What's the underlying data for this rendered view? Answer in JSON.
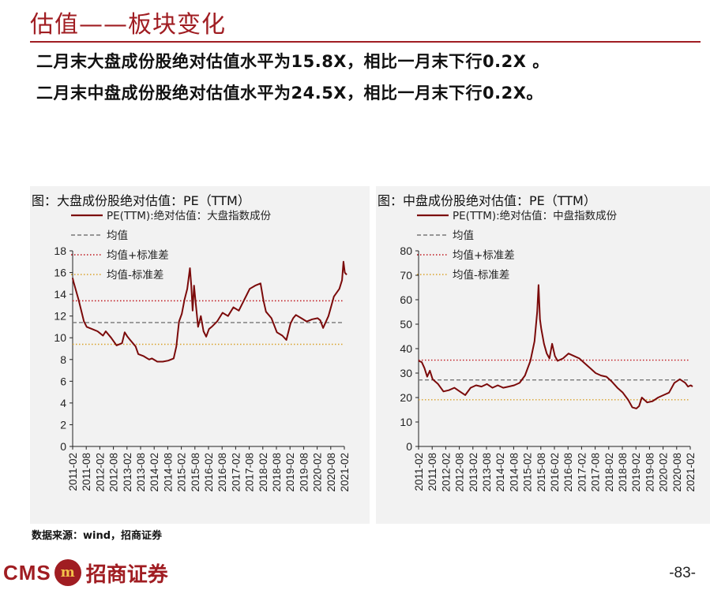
{
  "page": {
    "title": "估值——板块变化",
    "bullets": [
      "二月末大盘成份股绝对估值水平为15.8X，相比一月末下行0.2X 。",
      "二月末中盘成份股绝对估值水平为24.5X，相比一月末下行0.2X。"
    ],
    "source": "数据来源：wind，招商证券",
    "logo": {
      "cms": "CMS",
      "badge": "m",
      "cn": "招商证券"
    },
    "page_number": "-83-"
  },
  "chart_data": [
    {
      "type": "line",
      "title": "图：大盘成份股绝对估值：PE（TTM）",
      "x_ticks": [
        "2011-02",
        "2011-08",
        "2012-02",
        "2012-08",
        "2013-02",
        "2013-08",
        "2014-02",
        "2014-08",
        "2015-02",
        "2015-08",
        "2016-02",
        "2016-08",
        "2017-02",
        "2017-08",
        "2018-02",
        "2018-08",
        "2019-02",
        "2019-08",
        "2020-02",
        "2020-08",
        "2021-02"
      ],
      "ylim": [
        0,
        18
      ],
      "yticks": [
        0,
        2,
        4,
        6,
        8,
        10,
        12,
        14,
        16,
        18
      ],
      "series": [
        {
          "name": "PE(TTM):绝对估值：大盘指数成份",
          "color": "#7b0a0a",
          "x": [
            2011.08,
            2011.12,
            2011.3,
            2011.5,
            2011.6,
            2011.8,
            2012.0,
            2012.2,
            2012.3,
            2012.5,
            2012.7,
            2012.9,
            2013.0,
            2013.1,
            2013.2,
            2013.4,
            2013.5,
            2013.7,
            2013.9,
            2014.0,
            2014.2,
            2014.4,
            2014.6,
            2014.8,
            2014.9,
            2015.0,
            2015.1,
            2015.2,
            2015.3,
            2015.4,
            2015.45,
            2015.5,
            2015.55,
            2015.6,
            2015.7,
            2015.8,
            2015.9,
            2016.0,
            2016.1,
            2016.2,
            2016.4,
            2016.6,
            2016.8,
            2017.0,
            2017.2,
            2017.4,
            2017.6,
            2017.8,
            2018.0,
            2018.1,
            2018.2,
            2018.4,
            2018.6,
            2018.8,
            2018.95,
            2019.1,
            2019.2,
            2019.3,
            2019.5,
            2019.7,
            2019.9,
            2020.1,
            2020.2,
            2020.3,
            2020.5,
            2020.7,
            2020.9,
            2021.0,
            2021.05,
            2021.1,
            2021.17
          ],
          "values": [
            15.5,
            15.1,
            13.5,
            11.5,
            11.0,
            10.8,
            10.6,
            10.2,
            10.6,
            10.0,
            9.3,
            9.5,
            10.5,
            10.1,
            9.8,
            9.2,
            8.5,
            8.3,
            8.0,
            8.1,
            7.8,
            7.8,
            7.9,
            8.1,
            9.2,
            11.5,
            12.2,
            13.5,
            14.5,
            16.4,
            14.8,
            12.5,
            14.8,
            13.5,
            11.0,
            12.0,
            10.6,
            10.1,
            10.8,
            11.0,
            11.5,
            12.3,
            12.0,
            12.8,
            12.5,
            13.5,
            14.5,
            14.8,
            15.0,
            13.5,
            12.4,
            11.8,
            10.5,
            10.2,
            9.8,
            11.3,
            11.8,
            12.1,
            11.8,
            11.5,
            11.7,
            11.8,
            11.6,
            10.9,
            12.0,
            13.8,
            14.5,
            15.3,
            17.0,
            16.0,
            15.8
          ]
        }
      ],
      "reference_lines": [
        {
          "name": "均值",
          "value": 11.4,
          "color": "#777777",
          "style": "dashed"
        },
        {
          "name": "均值+标准差",
          "value": 13.4,
          "color": "#c0161c",
          "style": "dotted"
        },
        {
          "name": "均值-标准差",
          "value": 9.4,
          "color": "#d9a12a",
          "style": "dotted"
        }
      ],
      "legend_position": "top-left"
    },
    {
      "type": "line",
      "title": "图：中盘成份股绝对估值：PE（TTM）",
      "x_ticks": [
        "2011-02",
        "2011-08",
        "2012-02",
        "2012-08",
        "2013-02",
        "2013-08",
        "2014-02",
        "2014-08",
        "2015-02",
        "2015-08",
        "2016-02",
        "2016-08",
        "2017-02",
        "2017-08",
        "2018-02",
        "2018-08",
        "2019-02",
        "2019-08",
        "2020-02",
        "2020-08",
        "2021-02"
      ],
      "ylim": [
        0,
        80
      ],
      "yticks": [
        0,
        10,
        20,
        30,
        40,
        50,
        60,
        70,
        80
      ],
      "series": [
        {
          "name": "PE(TTM):绝对估值：中盘指数成份",
          "color": "#7b0a0a",
          "x": [
            2011.08,
            2011.2,
            2011.3,
            2011.4,
            2011.5,
            2011.6,
            2011.8,
            2012.0,
            2012.2,
            2012.4,
            2012.6,
            2012.8,
            2013.0,
            2013.2,
            2013.4,
            2013.6,
            2013.8,
            2014.0,
            2014.2,
            2014.4,
            2014.6,
            2014.8,
            2015.0,
            2015.2,
            2015.35,
            2015.45,
            2015.5,
            2015.55,
            2015.6,
            2015.7,
            2015.8,
            2015.9,
            2016.0,
            2016.1,
            2016.2,
            2016.4,
            2016.6,
            2016.8,
            2017.0,
            2017.2,
            2017.4,
            2017.6,
            2017.8,
            2018.0,
            2018.2,
            2018.4,
            2018.6,
            2018.8,
            2018.95,
            2019.1,
            2019.2,
            2019.3,
            2019.5,
            2019.7,
            2019.9,
            2020.1,
            2020.3,
            2020.5,
            2020.7,
            2020.9,
            2021.0,
            2021.1,
            2021.17
          ],
          "values": [
            35.0,
            34.5,
            32.0,
            28.5,
            31.0,
            27.5,
            25.5,
            22.5,
            23.0,
            24.0,
            22.5,
            21.0,
            24.0,
            25.0,
            24.5,
            25.5,
            24.0,
            25.0,
            24.0,
            24.5,
            25.0,
            26.0,
            29.0,
            35.0,
            43.0,
            55.0,
            66.0,
            52.0,
            48.0,
            42.0,
            38.0,
            36.0,
            42.0,
            37.0,
            35.0,
            36.0,
            38.0,
            37.0,
            36.0,
            34.0,
            32.0,
            30.0,
            29.0,
            28.5,
            26.5,
            24.0,
            22.0,
            19.0,
            16.0,
            15.5,
            16.5,
            20.0,
            18.0,
            18.5,
            20.0,
            21.0,
            22.0,
            26.0,
            27.5,
            26.0,
            24.5,
            25.0,
            24.5
          ]
        }
      ],
      "reference_lines": [
        {
          "name": "均值",
          "value": 27.2,
          "color": "#777777",
          "style": "dashed"
        },
        {
          "name": "均值+标准差",
          "value": 35.3,
          "color": "#c0161c",
          "style": "dotted"
        },
        {
          "name": "均值-标准差",
          "value": 19.1,
          "color": "#d9a12a",
          "style": "dotted"
        }
      ],
      "legend_position": "top-left"
    }
  ]
}
